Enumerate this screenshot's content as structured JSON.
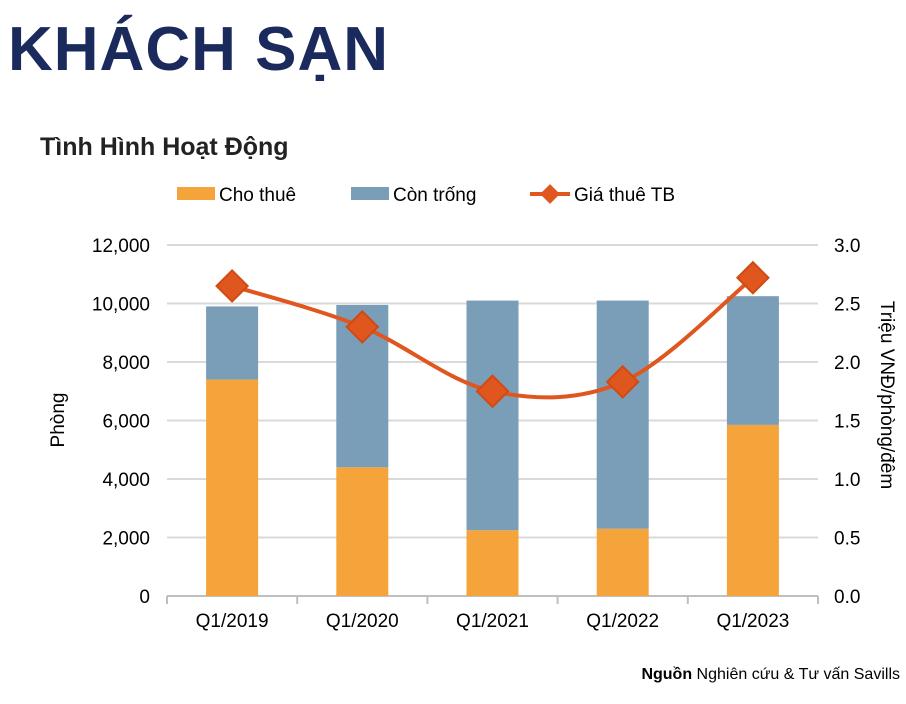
{
  "header": {
    "title": "KHÁCH SẠN"
  },
  "source": {
    "label": "Nguồn",
    "text": " Nghiên cứu & Tư vấn Savills"
  },
  "colors": {
    "rented": "#F4A43A",
    "vacant": "#7A9DB8",
    "price": "#E0561F",
    "grid": "#d9d9d9"
  },
  "chart_data": {
    "type": "bar",
    "title": "Tình Hình Hoạt Động",
    "categories": [
      "Q1/2019",
      "Q1/2020",
      "Q1/2021",
      "Q1/2022",
      "Q1/2023"
    ],
    "series": [
      {
        "name": "Cho thuê",
        "type": "stacked-bar",
        "axis": "left",
        "values": [
          7400,
          4400,
          2250,
          2300,
          5850
        ]
      },
      {
        "name": "Còn trống",
        "type": "stacked-bar",
        "axis": "left",
        "values": [
          2500,
          5550,
          7850,
          7800,
          4400
        ]
      },
      {
        "name": "Giá thuê TB",
        "type": "line",
        "axis": "right",
        "values": [
          2.65,
          2.3,
          1.75,
          1.83,
          2.72
        ]
      }
    ],
    "ylabel": "Phòng",
    "ylim": [
      0,
      12000
    ],
    "yticks": [
      "0",
      "2,000",
      "4,000",
      "6,000",
      "8,000",
      "10,000",
      "12,000"
    ],
    "y2label": "Triệu VNĐ/phòng/đêm",
    "y2lim": [
      0,
      3
    ],
    "y2ticks": [
      "0.0",
      "0.5",
      "1.0",
      "1.5",
      "2.0",
      "2.5",
      "3.0"
    ],
    "legend": "top",
    "grid": true
  }
}
